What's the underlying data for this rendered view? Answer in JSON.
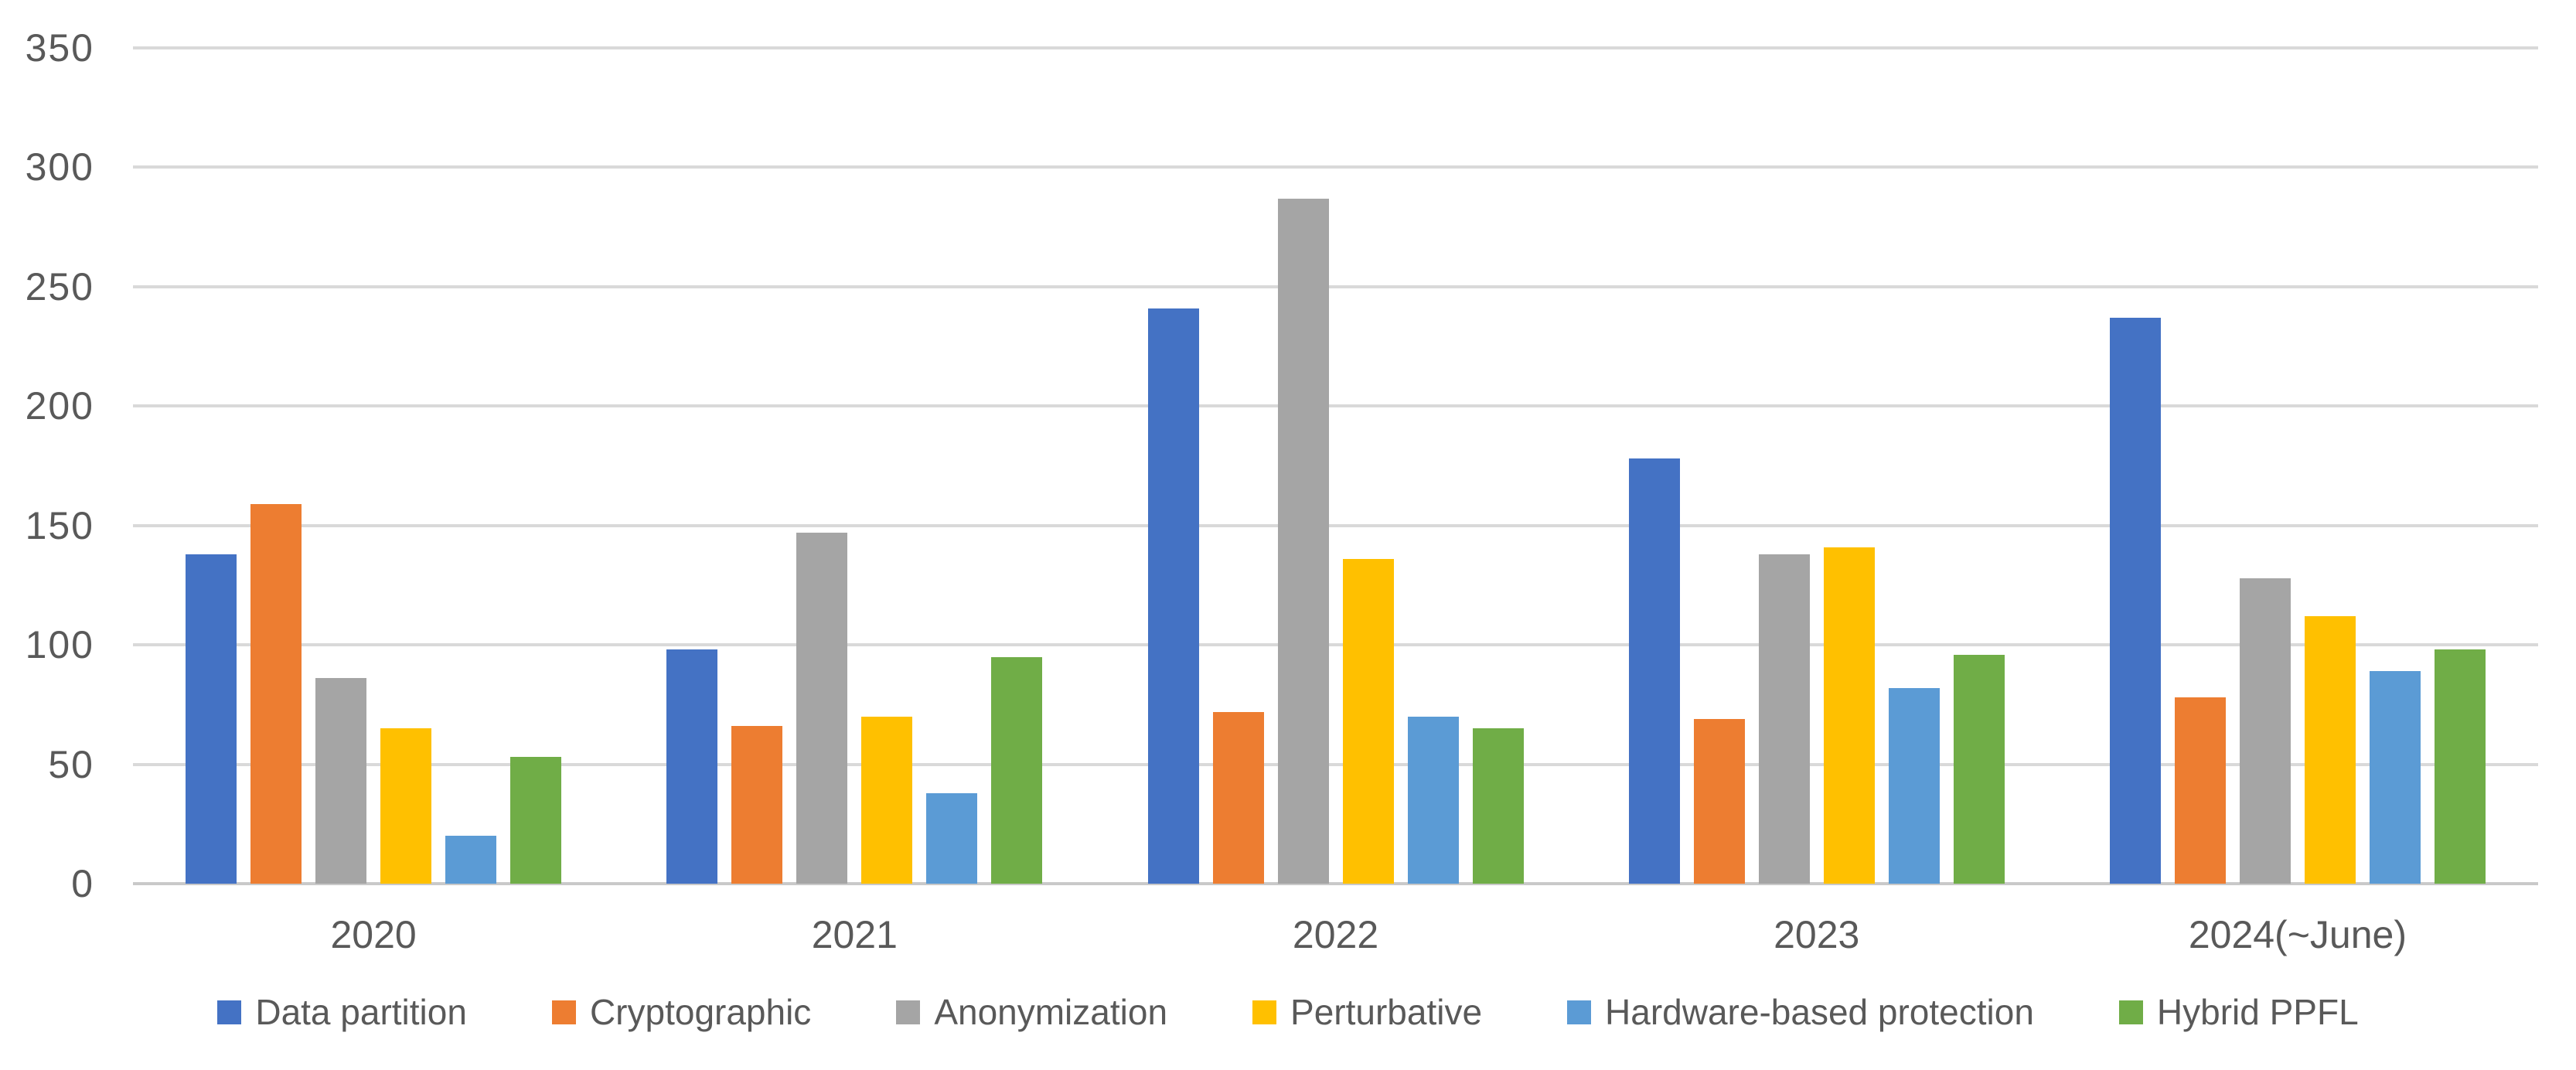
{
  "chart_data": {
    "type": "bar",
    "categories": [
      "2020",
      "2021",
      "2022",
      "2023",
      "2024(~June)"
    ],
    "series": [
      {
        "name": "Data partition",
        "color": "#4472C4",
        "values": [
          138,
          98,
          241,
          178,
          237
        ]
      },
      {
        "name": "Cryptographic",
        "color": "#ED7D31",
        "values": [
          159,
          66,
          72,
          69,
          78
        ]
      },
      {
        "name": "Anonymization",
        "color": "#A5A5A5",
        "values": [
          86,
          147,
          287,
          138,
          128
        ]
      },
      {
        "name": "Perturbative",
        "color": "#FFC000",
        "values": [
          65,
          70,
          136,
          141,
          112
        ]
      },
      {
        "name": "Hardware-based protection",
        "color": "#5B9BD5",
        "values": [
          20,
          38,
          70,
          82,
          89
        ]
      },
      {
        "name": "Hybrid PPFL",
        "color": "#70AD47",
        "values": [
          53,
          95,
          65,
          96,
          98
        ]
      }
    ],
    "xlabel": "",
    "ylabel": "",
    "ylim": [
      0,
      350
    ],
    "ytick_step": 50,
    "yticks": [
      0,
      50,
      100,
      150,
      200,
      250,
      300,
      350
    ],
    "grid": true,
    "legend_position": "bottom"
  },
  "colors": {
    "axis_text": "#595959",
    "gridline": "#D9D9D9",
    "axis_line": "#C9C9C9",
    "background": "#FFFFFF"
  }
}
